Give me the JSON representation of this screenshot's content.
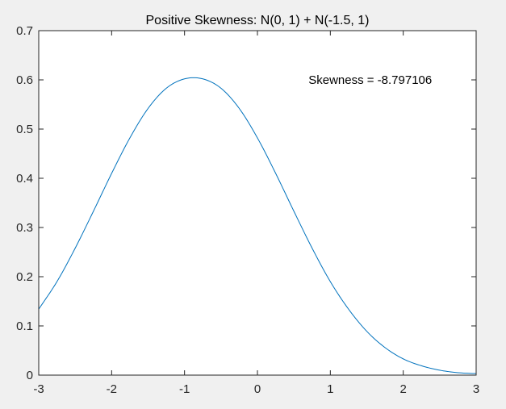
{
  "chart_data": {
    "type": "line",
    "title": "Positive Skewness: N(0, 1) + N(-1.5, 1)",
    "xlabel": "",
    "ylabel": "",
    "xlim": [
      -3,
      3
    ],
    "ylim": [
      0,
      0.7
    ],
    "x_ticks": [
      -3,
      -2,
      -1,
      0,
      1,
      2,
      3
    ],
    "x_tick_labels": [
      "-3",
      "-2",
      "-1",
      "0",
      "1",
      "2",
      "3"
    ],
    "y_ticks": [
      0,
      0.1,
      0.2,
      0.3,
      0.4,
      0.5,
      0.6,
      0.7
    ],
    "y_tick_labels": [
      "0",
      "0.1",
      "0.2",
      "0.3",
      "0.4",
      "0.5",
      "0.6",
      "0.7"
    ],
    "grid": false,
    "series": [
      {
        "color": "#0072bd",
        "x": [
          -3.0,
          -2.75,
          -2.5,
          -2.25,
          -2.0,
          -1.75,
          -1.5,
          -1.25,
          -1.0,
          -0.75,
          -0.5,
          -0.25,
          0.0,
          0.25,
          0.5,
          0.75,
          1.0,
          1.25,
          1.5,
          1.75,
          2.0,
          2.25,
          2.5,
          2.75,
          3.0
        ],
        "y": [
          0.134,
          0.19,
          0.258,
          0.333,
          0.41,
          0.482,
          0.542,
          0.583,
          0.602,
          0.602,
          0.583,
          0.542,
          0.482,
          0.41,
          0.333,
          0.258,
          0.19,
          0.134,
          0.089,
          0.056,
          0.033,
          0.019,
          0.01,
          0.005,
          0.003
        ]
      }
    ],
    "annotations": [
      {
        "text": "Skewness = -8.797106",
        "x": 0.7,
        "y": 0.6
      }
    ]
  }
}
